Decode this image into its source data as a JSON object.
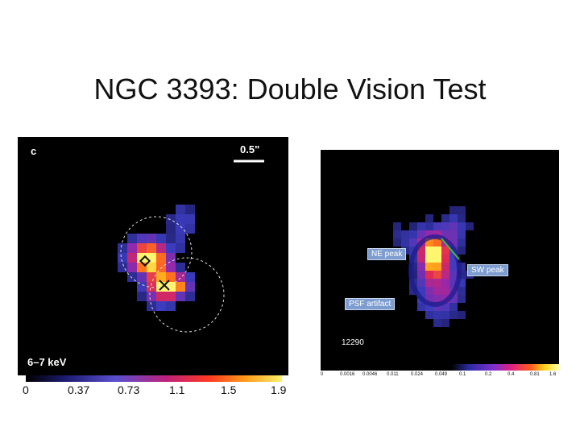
{
  "slide": {
    "title": "NGC 3393: Double Vision Test"
  },
  "left_image": {
    "panel_letter": "c",
    "scale_label": "0.5\"",
    "energy_label": "6–7 keV",
    "colorbar_ticks": [
      "0",
      "0.37",
      "0.73",
      "1.1",
      "1.5",
      "1.9"
    ]
  },
  "right_image": {
    "callouts": {
      "ne": "NE peak",
      "sw": "SW peak",
      "psf": "PSF artifact"
    },
    "obsid": "12290",
    "colorbar_ticks": [
      "0",
      "0.0016",
      "0.0046",
      "0.011",
      "0.024",
      "0.049",
      "0.1",
      "0.2",
      "0.4",
      "0.81",
      "1.6"
    ]
  },
  "colors": {
    "background": "#ffffff",
    "panel": "#000000",
    "callout": "#7d9ccf"
  }
}
